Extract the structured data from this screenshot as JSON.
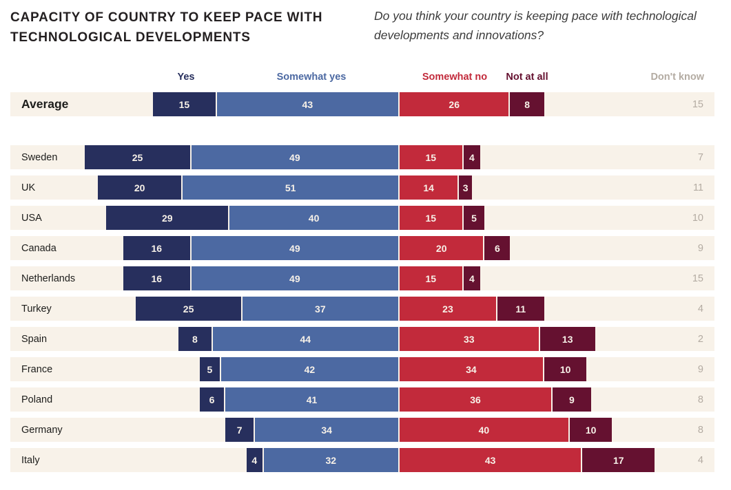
{
  "header": {
    "title": "CAPACITY OF COUNTRY TO KEEP PACE WITH TECHNOLOGICAL DEVELOPMENTS",
    "question": "Do you think your country is keeping pace with technological developments and innovations?"
  },
  "colors": {
    "title_text": "#231f20",
    "question_text": "#3c3c3c",
    "label_text": "#1d1d1b",
    "yes": "#272f5d",
    "somewhat_yes": "#4c69a2",
    "somewhat_no": "#c22a3b",
    "not_at_all": "#651130",
    "dont_know_text": "#b3aba2",
    "row_bg": "#f8f2e9",
    "bar_value_text": "#f7f1e8"
  },
  "chart_data": {
    "type": "bar",
    "variant": "diverging-stacked-horizontal",
    "title": "CAPACITY OF COUNTRY TO KEEP PACE WITH TECHNOLOGICAL DEVELOPMENTS",
    "subtitle": "Do you think your country is keeping pace with technological developments and innovations?",
    "unit": "percent",
    "legend_position": "top",
    "legend": [
      "Yes",
      "Somewhat yes",
      "Somewhat no",
      "Not at all",
      "Don't know"
    ],
    "diverging_center": "between Somewhat yes and Somewhat no",
    "categories": [
      "Average",
      "Sweden",
      "UK",
      "USA",
      "Canada",
      "Netherlands",
      "Turkey",
      "Spain",
      "France",
      "Poland",
      "Germany",
      "Italy"
    ],
    "emphasized_category": "Average",
    "series": [
      {
        "name": "Yes",
        "values": [
          15,
          25,
          20,
          29,
          16,
          16,
          25,
          8,
          5,
          6,
          7,
          4
        ]
      },
      {
        "name": "Somewhat yes",
        "values": [
          43,
          49,
          51,
          40,
          49,
          49,
          37,
          44,
          42,
          41,
          34,
          32
        ]
      },
      {
        "name": "Somewhat no",
        "values": [
          26,
          15,
          14,
          15,
          20,
          15,
          23,
          33,
          34,
          36,
          40,
          43
        ]
      },
      {
        "name": "Not at all",
        "values": [
          8,
          4,
          3,
          5,
          6,
          4,
          11,
          13,
          10,
          9,
          10,
          17
        ]
      },
      {
        "name": "Don't know",
        "values": [
          15,
          7,
          11,
          10,
          9,
          15,
          4,
          2,
          9,
          8,
          8,
          4
        ]
      }
    ]
  }
}
